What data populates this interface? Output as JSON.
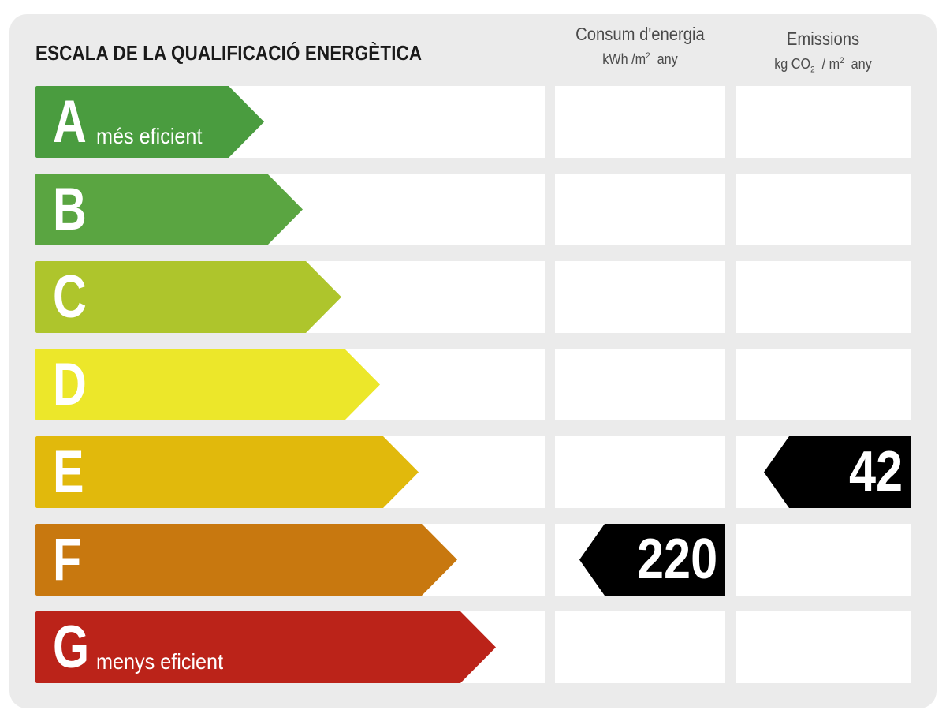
{
  "title": "ESCALA DE LA QUALIFICACIÓ ENERGÈTICA",
  "columns": {
    "energy": {
      "label": "Consum d'energia",
      "unit_pre": "kWh /m",
      "unit_sup": "2",
      "unit_post": "any"
    },
    "emissions": {
      "label": "Emissions",
      "unit_a": "kg CO",
      "unit_sub": "2",
      "unit_b": "/ m",
      "unit_sup": "2",
      "unit_c": "any"
    }
  },
  "ratings": [
    {
      "letter": "A",
      "caption": "més eficient",
      "color": "#4a9c3f"
    },
    {
      "letter": "B",
      "caption": "",
      "color": "#5aa541"
    },
    {
      "letter": "C",
      "caption": "",
      "color": "#aec52c"
    },
    {
      "letter": "D",
      "caption": "",
      "color": "#ece72a"
    },
    {
      "letter": "E",
      "caption": "",
      "color": "#e1b90c"
    },
    {
      "letter": "F",
      "caption": "",
      "color": "#c8780f"
    },
    {
      "letter": "G",
      "caption": "menys eficient",
      "color": "#bb2319"
    }
  ],
  "energy_rating": {
    "letter": "F",
    "value": "220"
  },
  "emissions_rating": {
    "letter": "E",
    "value": "42"
  },
  "marker_color": "#000000"
}
